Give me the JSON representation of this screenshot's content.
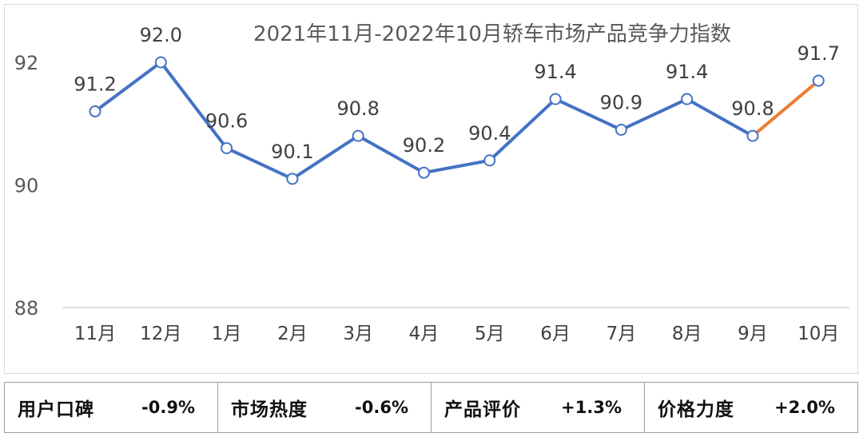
{
  "chart_data": {
    "type": "line",
    "title": "2021年11月-2022年10月轿车市场产品竞争力指数",
    "categories": [
      "11月",
      "12月",
      "1月",
      "2月",
      "3月",
      "4月",
      "5月",
      "6月",
      "7月",
      "8月",
      "9月",
      "10月"
    ],
    "values": [
      91.2,
      92.0,
      90.6,
      90.1,
      90.8,
      90.2,
      90.4,
      91.4,
      90.9,
      91.4,
      90.8,
      91.7
    ],
    "value_labels": [
      "91.2",
      "92.0",
      "90.6",
      "90.1",
      "90.8",
      "90.2",
      "90.4",
      "91.4",
      "90.9",
      "91.4",
      "90.8",
      "91.7"
    ],
    "ylim": [
      88,
      92
    ],
    "yticks": [
      "88",
      "90",
      "92"
    ],
    "xlabel": "",
    "ylabel": "",
    "series_color": "#4472c4",
    "highlight_color": "#ed7d31",
    "highlight_last_segment": true,
    "grid": false
  },
  "summary": [
    {
      "name": "用户口碑",
      "value": "-0.9%"
    },
    {
      "name": "市场热度",
      "value": "-0.6%"
    },
    {
      "name": "产品评价",
      "value": "+1.3%"
    },
    {
      "name": "价格力度",
      "value": "+2.0%"
    }
  ]
}
